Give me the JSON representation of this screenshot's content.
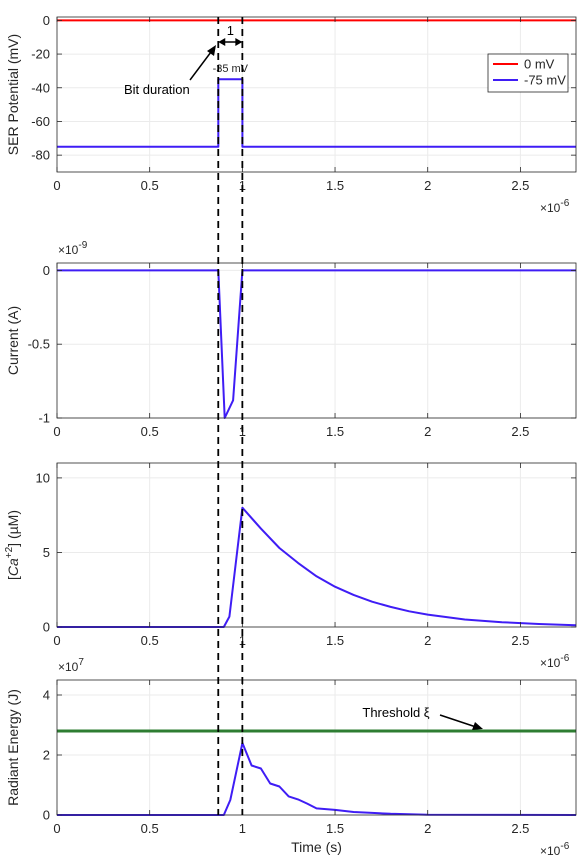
{
  "chart_data": [
    {
      "type": "line",
      "ylabel": "SER Potential (mV)",
      "xlabel": "",
      "x_exponent_label": "×10",
      "x_exponent_power": "-6",
      "xlim": [
        0,
        2.8e-06
      ],
      "ylim": [
        -90,
        2
      ],
      "xticks": [
        0,
        5e-07,
        1e-06,
        1.5e-06,
        2e-06,
        2.5e-06
      ],
      "xtick_labels": [
        "0",
        "0.5",
        "1",
        "1.5",
        "2",
        "2.5"
      ],
      "yticks": [
        0,
        -20,
        -40,
        -60,
        -80
      ],
      "ytick_labels": [
        "0",
        "-20",
        "-40",
        "-60",
        "-80"
      ],
      "grid": true,
      "legend": {
        "placement": "top-right",
        "entries": [
          "0 mV",
          "-75 mV"
        ]
      },
      "series": [
        {
          "name": "0 mV",
          "color": "#ff0000",
          "x": [
            0,
            2.8e-06
          ],
          "y": [
            0,
            0
          ]
        },
        {
          "name": "-75 mV",
          "color": "#3f1df5",
          "x": [
            0,
            8.7e-07,
            8.7e-07,
            1e-06,
            1e-06,
            2.8e-06
          ],
          "y": [
            -75,
            -75,
            -35,
            -35,
            -75,
            -75
          ]
        }
      ],
      "annotations": {
        "pulse_label": "-35 mV",
        "bit_duration_label": "Bit duration",
        "duration_value": "1"
      }
    },
    {
      "type": "line",
      "ylabel": "Current (A)",
      "y_exponent_label": "×10",
      "y_exponent_power": "-9",
      "xlim": [
        0,
        2.8e-06
      ],
      "ylim": [
        -1,
        0.05
      ],
      "xticks": [
        0,
        5e-07,
        1e-06,
        1.5e-06,
        2e-06,
        2.5e-06
      ],
      "xtick_labels": [
        "0",
        "0.5",
        "1",
        "1.5",
        "2",
        "2.5"
      ],
      "yticks": [
        0,
        -0.5,
        -1
      ],
      "ytick_labels": [
        "0",
        "-0.5",
        "-1"
      ],
      "grid": true,
      "series": [
        {
          "color": "#3f1df5",
          "x": [
            0,
            8.7e-07,
            9.05e-07,
            9.5e-07,
            1e-06,
            2.8e-06
          ],
          "y": [
            0,
            0,
            -1,
            -0.88,
            0,
            0
          ]
        }
      ]
    },
    {
      "type": "line",
      "ylabel": "[Ca+2] (µM)",
      "x_exponent_label": "×10",
      "x_exponent_power": "-6",
      "xlim": [
        0,
        2.8e-06
      ],
      "ylim": [
        0,
        11
      ],
      "xticks": [
        0,
        5e-07,
        1e-06,
        1.5e-06,
        2e-06,
        2.5e-06
      ],
      "xtick_labels": [
        "0",
        "0.5",
        "1",
        "1.5",
        "2",
        "2.5"
      ],
      "yticks": [
        0,
        5,
        10
      ],
      "ytick_labels": [
        "0",
        "5",
        "10"
      ],
      "grid": true,
      "series": [
        {
          "color": "#3f1df5",
          "x": [
            0,
            9e-07,
            9.3e-07,
            1e-06,
            1.1e-06,
            1.2e-06,
            1.3e-06,
            1.4e-06,
            1.5e-06,
            1.6e-06,
            1.7e-06,
            1.8e-06,
            1.9e-06,
            2e-06,
            2.2e-06,
            2.4e-06,
            2.6e-06,
            2.8e-06
          ],
          "y": [
            0,
            0,
            0.7,
            8.0,
            6.6,
            5.3,
            4.3,
            3.4,
            2.7,
            2.15,
            1.7,
            1.35,
            1.05,
            0.83,
            0.5,
            0.32,
            0.2,
            0.12
          ]
        }
      ]
    },
    {
      "type": "line",
      "ylabel": "Radiant Energy (J)",
      "xlabel": "Time (s)",
      "y_exponent_label": "×10",
      "y_exponent_power": "7",
      "x_exponent_label": "×10",
      "x_exponent_power": "-6",
      "xlim": [
        0,
        2.8e-06
      ],
      "ylim": [
        0,
        4.5
      ],
      "xticks": [
        0,
        5e-07,
        1e-06,
        1.5e-06,
        2e-06,
        2.5e-06
      ],
      "xtick_labels": [
        "0",
        "0.5",
        "1",
        "1.5",
        "2",
        "2.5"
      ],
      "yticks": [
        0,
        2,
        4
      ],
      "ytick_labels": [
        "0",
        "2",
        "4"
      ],
      "grid": true,
      "threshold": {
        "label": "Threshold ξ",
        "value": 2.8,
        "color": "#2e7d32"
      },
      "series": [
        {
          "color": "#3f1df5",
          "x": [
            0,
            9e-07,
            9.35e-07,
            1e-06,
            1.05e-06,
            1.1e-06,
            1.15e-06,
            1.2e-06,
            1.25e-06,
            1.3e-06,
            1.35e-06,
            1.4e-06,
            1.5e-06,
            1.6e-06,
            1.7e-06,
            1.8e-06,
            2e-06,
            2.8e-06
          ],
          "y": [
            0,
            0,
            0.5,
            2.4,
            1.65,
            1.55,
            1.05,
            0.95,
            0.62,
            0.52,
            0.38,
            0.22,
            0.17,
            0.1,
            0.07,
            0.04,
            0.01,
            0
          ]
        }
      ]
    }
  ]
}
